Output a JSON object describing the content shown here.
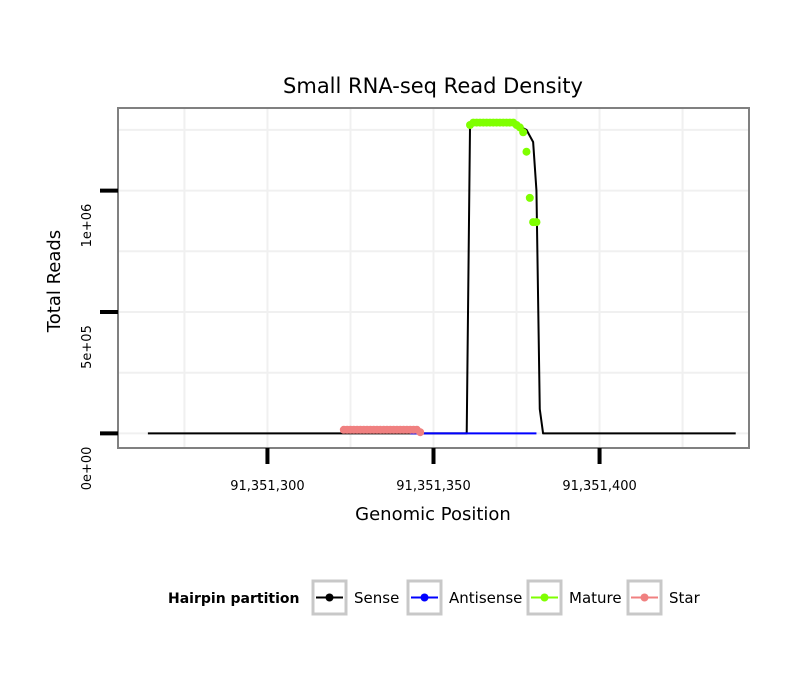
{
  "chart_data": {
    "type": "line",
    "title": "Small RNA-seq Read Density",
    "xlabel": "Genomic Position",
    "ylabel": "Total Reads",
    "xlim": [
      91351255,
      91351445
    ],
    "ylim": [
      -60000,
      1340000
    ],
    "x_ticks": [
      91351300,
      91351350,
      91351400
    ],
    "x_tick_labels": [
      "91,351,300",
      "91,351,350",
      "91,351,400"
    ],
    "y_ticks": [
      0,
      500000,
      1000000
    ],
    "y_tick_labels": [
      "0e+00",
      "5e+05",
      "1e+06"
    ],
    "grid": true,
    "legend": {
      "title": "Hairpin partition",
      "position": "bottom",
      "entries": [
        {
          "name": "Sense",
          "color": "#000000"
        },
        {
          "name": "Antisense",
          "color": "#0000FF"
        },
        {
          "name": "Mature",
          "color": "#7FFF00"
        },
        {
          "name": "Star",
          "color": "#F08080"
        }
      ]
    },
    "series": [
      {
        "name": "Sense",
        "color": "#000000",
        "style": "line",
        "x": [
          91351264,
          91351360,
          91351361,
          91351375,
          91351378,
          91351380,
          91351381,
          91351382,
          91351383,
          91351441
        ],
        "values": [
          0,
          0,
          1270000,
          1270000,
          1250000,
          1200000,
          1000000,
          100000,
          0,
          0
        ]
      },
      {
        "name": "Antisense",
        "color": "#0000FF",
        "style": "line",
        "x": [
          91351343,
          91351381
        ],
        "values": [
          0,
          0
        ]
      },
      {
        "name": "Mature",
        "color": "#7FFF00",
        "style": "points",
        "x": [
          91351361,
          91351362,
          91351363,
          91351364,
          91351365,
          91351366,
          91351367,
          91351368,
          91351369,
          91351370,
          91351371,
          91351372,
          91351373,
          91351374,
          91351375,
          91351376,
          91351377,
          91351378,
          91351379,
          91351380,
          91351381
        ],
        "values": [
          1270000,
          1280000,
          1280000,
          1280000,
          1280000,
          1280000,
          1280000,
          1280000,
          1280000,
          1280000,
          1280000,
          1280000,
          1280000,
          1280000,
          1270000,
          1260000,
          1240000,
          1160000,
          970000,
          870000,
          870000
        ]
      },
      {
        "name": "Star",
        "color": "#F08080",
        "style": "points",
        "x": [
          91351323,
          91351324,
          91351325,
          91351326,
          91351327,
          91351328,
          91351329,
          91351330,
          91351331,
          91351332,
          91351333,
          91351334,
          91351335,
          91351336,
          91351337,
          91351338,
          91351339,
          91351340,
          91351341,
          91351342,
          91351343,
          91351344,
          91351345,
          91351346
        ],
        "values": [
          15000,
          15000,
          15000,
          15000,
          15000,
          15000,
          15000,
          15000,
          15000,
          15000,
          15000,
          15000,
          15000,
          15000,
          15000,
          15000,
          15000,
          15000,
          15000,
          15000,
          15000,
          15000,
          15000,
          5000
        ]
      }
    ]
  }
}
